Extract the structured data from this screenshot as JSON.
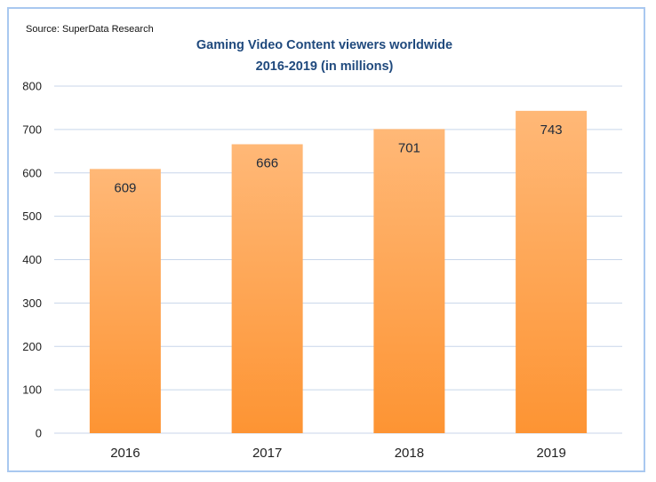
{
  "source": "Source: SuperData Research",
  "colors": {
    "bar_top": "#ffb877",
    "bar_bottom": "#fd9433",
    "grid": "#c8d6ea",
    "border": "#a9c8f0",
    "title": "#1f497d"
  },
  "chart_data": {
    "type": "bar",
    "title": "Gaming Video Content viewers worldwide",
    "subtitle": "2016-2019 (in millions)",
    "categories": [
      "2016",
      "2017",
      "2018",
      "2019"
    ],
    "values": [
      609,
      666,
      701,
      743
    ],
    "data_labels": [
      "609",
      "666",
      "701",
      "743"
    ],
    "ylim": [
      0,
      800
    ],
    "yticks": [
      0,
      100,
      200,
      300,
      400,
      500,
      600,
      700,
      800
    ],
    "xlabel": "",
    "ylabel": "",
    "grid": true,
    "legend": "none"
  }
}
